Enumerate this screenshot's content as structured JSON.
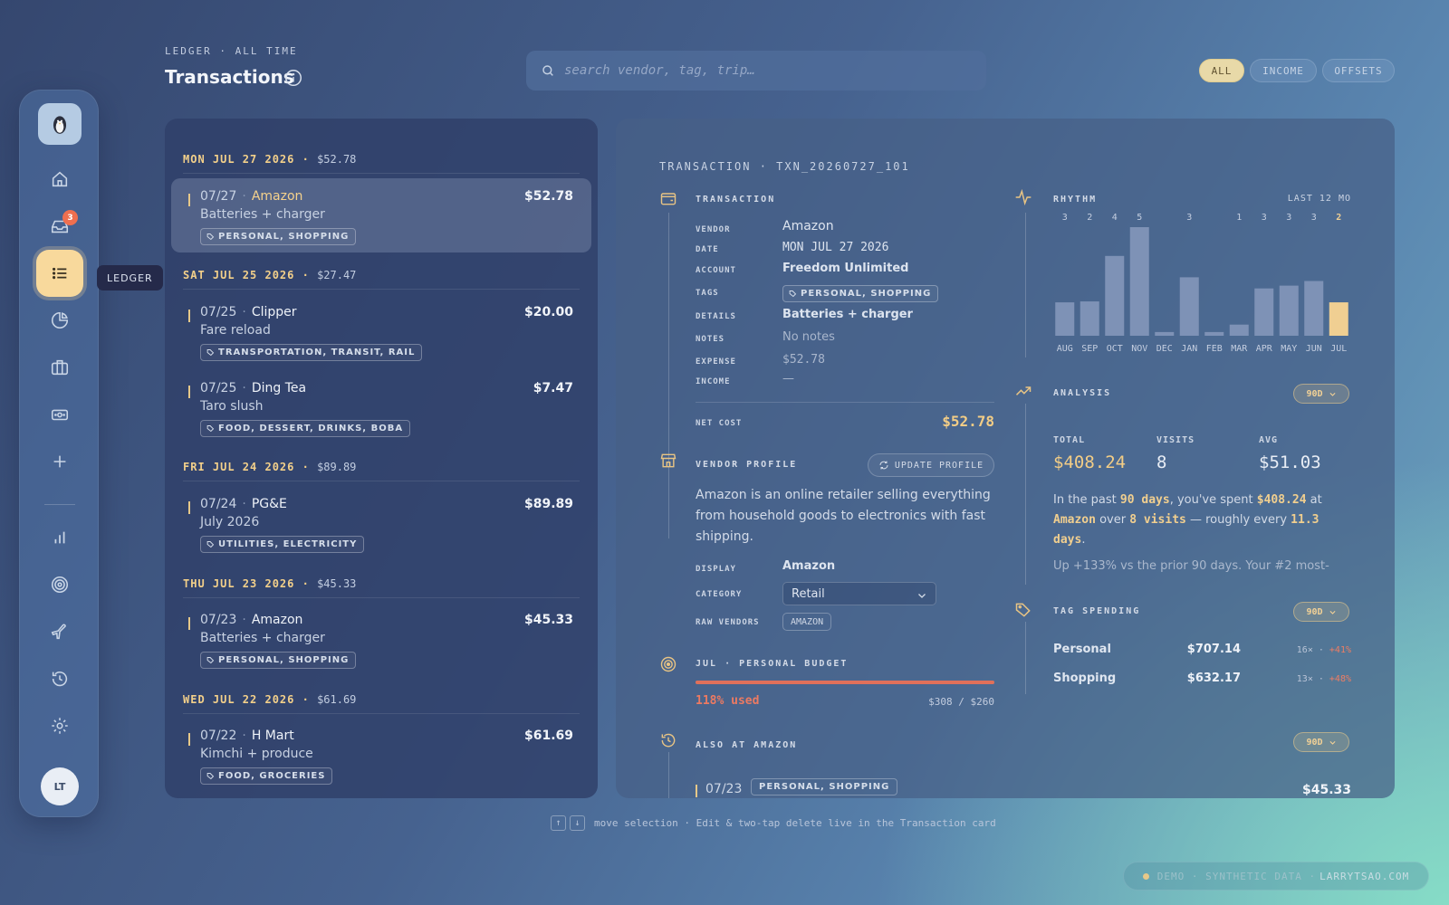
{
  "header": {
    "breadcrumb": "LEDGER · ALL TIME",
    "title": "Transactions"
  },
  "search": {
    "placeholder": "search vendor, tag, trip…"
  },
  "filters": [
    {
      "label": "ALL",
      "active": true
    },
    {
      "label": "INCOME",
      "active": false
    },
    {
      "label": "OFFSETS",
      "active": false
    }
  ],
  "sidebar": {
    "items": [
      {
        "icon": "home-icon"
      },
      {
        "icon": "inbox-icon",
        "badge": "3"
      },
      {
        "icon": "list-icon",
        "label": "LEDGER",
        "active": true
      },
      {
        "icon": "pie-chart-icon"
      },
      {
        "icon": "briefcase-icon"
      },
      {
        "icon": "cash-icon"
      },
      {
        "icon": "plus-icon"
      },
      {
        "icon": "bar-chart-icon"
      },
      {
        "icon": "target-icon"
      },
      {
        "icon": "plane-icon"
      },
      {
        "icon": "history-icon"
      },
      {
        "icon": "gear-icon"
      }
    ],
    "avatar": "LT",
    "tooltip": "LEDGER"
  },
  "ledger": {
    "days": [
      {
        "label": "MON JUL 27 2026",
        "total": "$52.78",
        "txns": [
          {
            "date": "07/27",
            "vendor": "Amazon",
            "amount": "$52.78",
            "desc": "Batteries + charger",
            "tags": "PERSONAL, SHOPPING",
            "selected": true
          }
        ]
      },
      {
        "label": "SAT JUL 25 2026",
        "total": "$27.47",
        "txns": [
          {
            "date": "07/25",
            "vendor": "Clipper",
            "amount": "$20.00",
            "desc": "Fare reload",
            "tags": "TRANSPORTATION, TRANSIT, RAIL"
          },
          {
            "date": "07/25",
            "vendor": "Ding Tea",
            "amount": "$7.47",
            "desc": "Taro slush",
            "tags": "FOOD, DESSERT, DRINKS, BOBA"
          }
        ]
      },
      {
        "label": "FRI JUL 24 2026",
        "total": "$89.89",
        "txns": [
          {
            "date": "07/24",
            "vendor": "PG&E",
            "amount": "$89.89",
            "desc": "July 2026",
            "tags": "UTILITIES, ELECTRICITY"
          }
        ]
      },
      {
        "label": "THU JUL 23 2026",
        "total": "$45.33",
        "txns": [
          {
            "date": "07/23",
            "vendor": "Amazon",
            "amount": "$45.33",
            "desc": "Batteries + charger",
            "tags": "PERSONAL, SHOPPING"
          }
        ]
      },
      {
        "label": "WED JUL 22 2026",
        "total": "$61.69",
        "txns": [
          {
            "date": "07/22",
            "vendor": "H Mart",
            "amount": "$61.69",
            "desc": "Kimchi + produce",
            "tags": "FOOD, GROCERIES"
          }
        ]
      }
    ]
  },
  "detail": {
    "header": "TRANSACTION · TXN_20260727_101",
    "transaction": {
      "title": "TRANSACTION",
      "fields": [
        {
          "k": "VENDOR",
          "v": "Amazon"
        },
        {
          "k": "DATE",
          "v": "MON JUL 27 2026"
        },
        {
          "k": "ACCOUNT",
          "v": "Freedom Unlimited"
        },
        {
          "k": "TAGS",
          "v": "PERSONAL, SHOPPING"
        },
        {
          "k": "DETAILS",
          "v": "Batteries + charger"
        },
        {
          "k": "NOTES",
          "v": "No notes"
        },
        {
          "k": "EXPENSE",
          "v": "$52.78"
        },
        {
          "k": "INCOME",
          "v": "—"
        }
      ],
      "net_cost_label": "NET COST",
      "net_cost": "$52.78"
    },
    "vendor_profile": {
      "title": "VENDOR PROFILE",
      "update_label": "UPDATE PROFILE",
      "description": "Amazon is an online retailer selling everything from household goods to electronics with fast shipping.",
      "display_label": "DISPLAY",
      "display": "Amazon",
      "category_label": "CATEGORY",
      "category": "Retail",
      "raw_label": "RAW VENDORS",
      "raw": "AMAZON"
    },
    "budget": {
      "title": "JUL · PERSONAL BUDGET",
      "used": "118% used",
      "amount": "$308 / $260",
      "fraction": 1.18
    },
    "also": {
      "title": "ALSO AT AMAZON",
      "range": "90D",
      "date": "07/23",
      "tags": "PERSONAL, SHOPPING",
      "amount": "$45.33"
    },
    "rhythm": {
      "title": "RHYTHM",
      "range": "LAST 12 MO"
    },
    "analysis": {
      "title": "ANALYSIS",
      "range": "90D",
      "total_label": "TOTAL",
      "total": "$408.24",
      "visits_label": "VISITS",
      "visits": "8",
      "avg_label": "AVG",
      "avg": "$51.03",
      "s1": "In the past ",
      "b1": "90 days",
      "s2": ", you've spent ",
      "b2": "$408.24",
      "s3": " at ",
      "b3": "Amazon",
      "s4": " over ",
      "b4": "8 visits",
      "s5": " — roughly every ",
      "b5": "11.3 days",
      "s6": ".",
      "more": "Up +133% vs the prior 90 days. Your #2 most-"
    },
    "tag_spending": {
      "title": "TAG SPENDING",
      "range": "90D",
      "rows": [
        {
          "name": "Personal",
          "amount": "$707.14",
          "count": "16×",
          "dot": " · ",
          "pct": "+41%"
        },
        {
          "name": "Shopping",
          "amount": "$632.17",
          "count": "13×",
          "dot": " · ",
          "pct": "+48%"
        }
      ]
    }
  },
  "chart_data": {
    "type": "bar",
    "categories": [
      "AUG",
      "SEP",
      "OCT",
      "NOV",
      "DEC",
      "JAN",
      "FEB",
      "MAR",
      "APR",
      "MAY",
      "JUN",
      "JUL"
    ],
    "values": [
      36,
      37,
      86,
      117,
      4,
      63,
      4,
      12,
      51,
      54,
      59,
      36
    ],
    "count_labels": [
      "3",
      "2",
      "4",
      "5",
      "",
      "3",
      "",
      "1",
      "3",
      "3",
      "3",
      "2"
    ],
    "highlight": "JUL",
    "bar_color": "#7e92b6",
    "highlight_color": "#f0cf92"
  },
  "footer": {
    "up_key": "↑",
    "down_key": "↓",
    "hint": "move selection · Edit & two-tap delete live in the Transaction card",
    "demo": "DEMO · SYNTHETIC DATA ·",
    "demo_link": "LARRYTSAO.COM"
  }
}
